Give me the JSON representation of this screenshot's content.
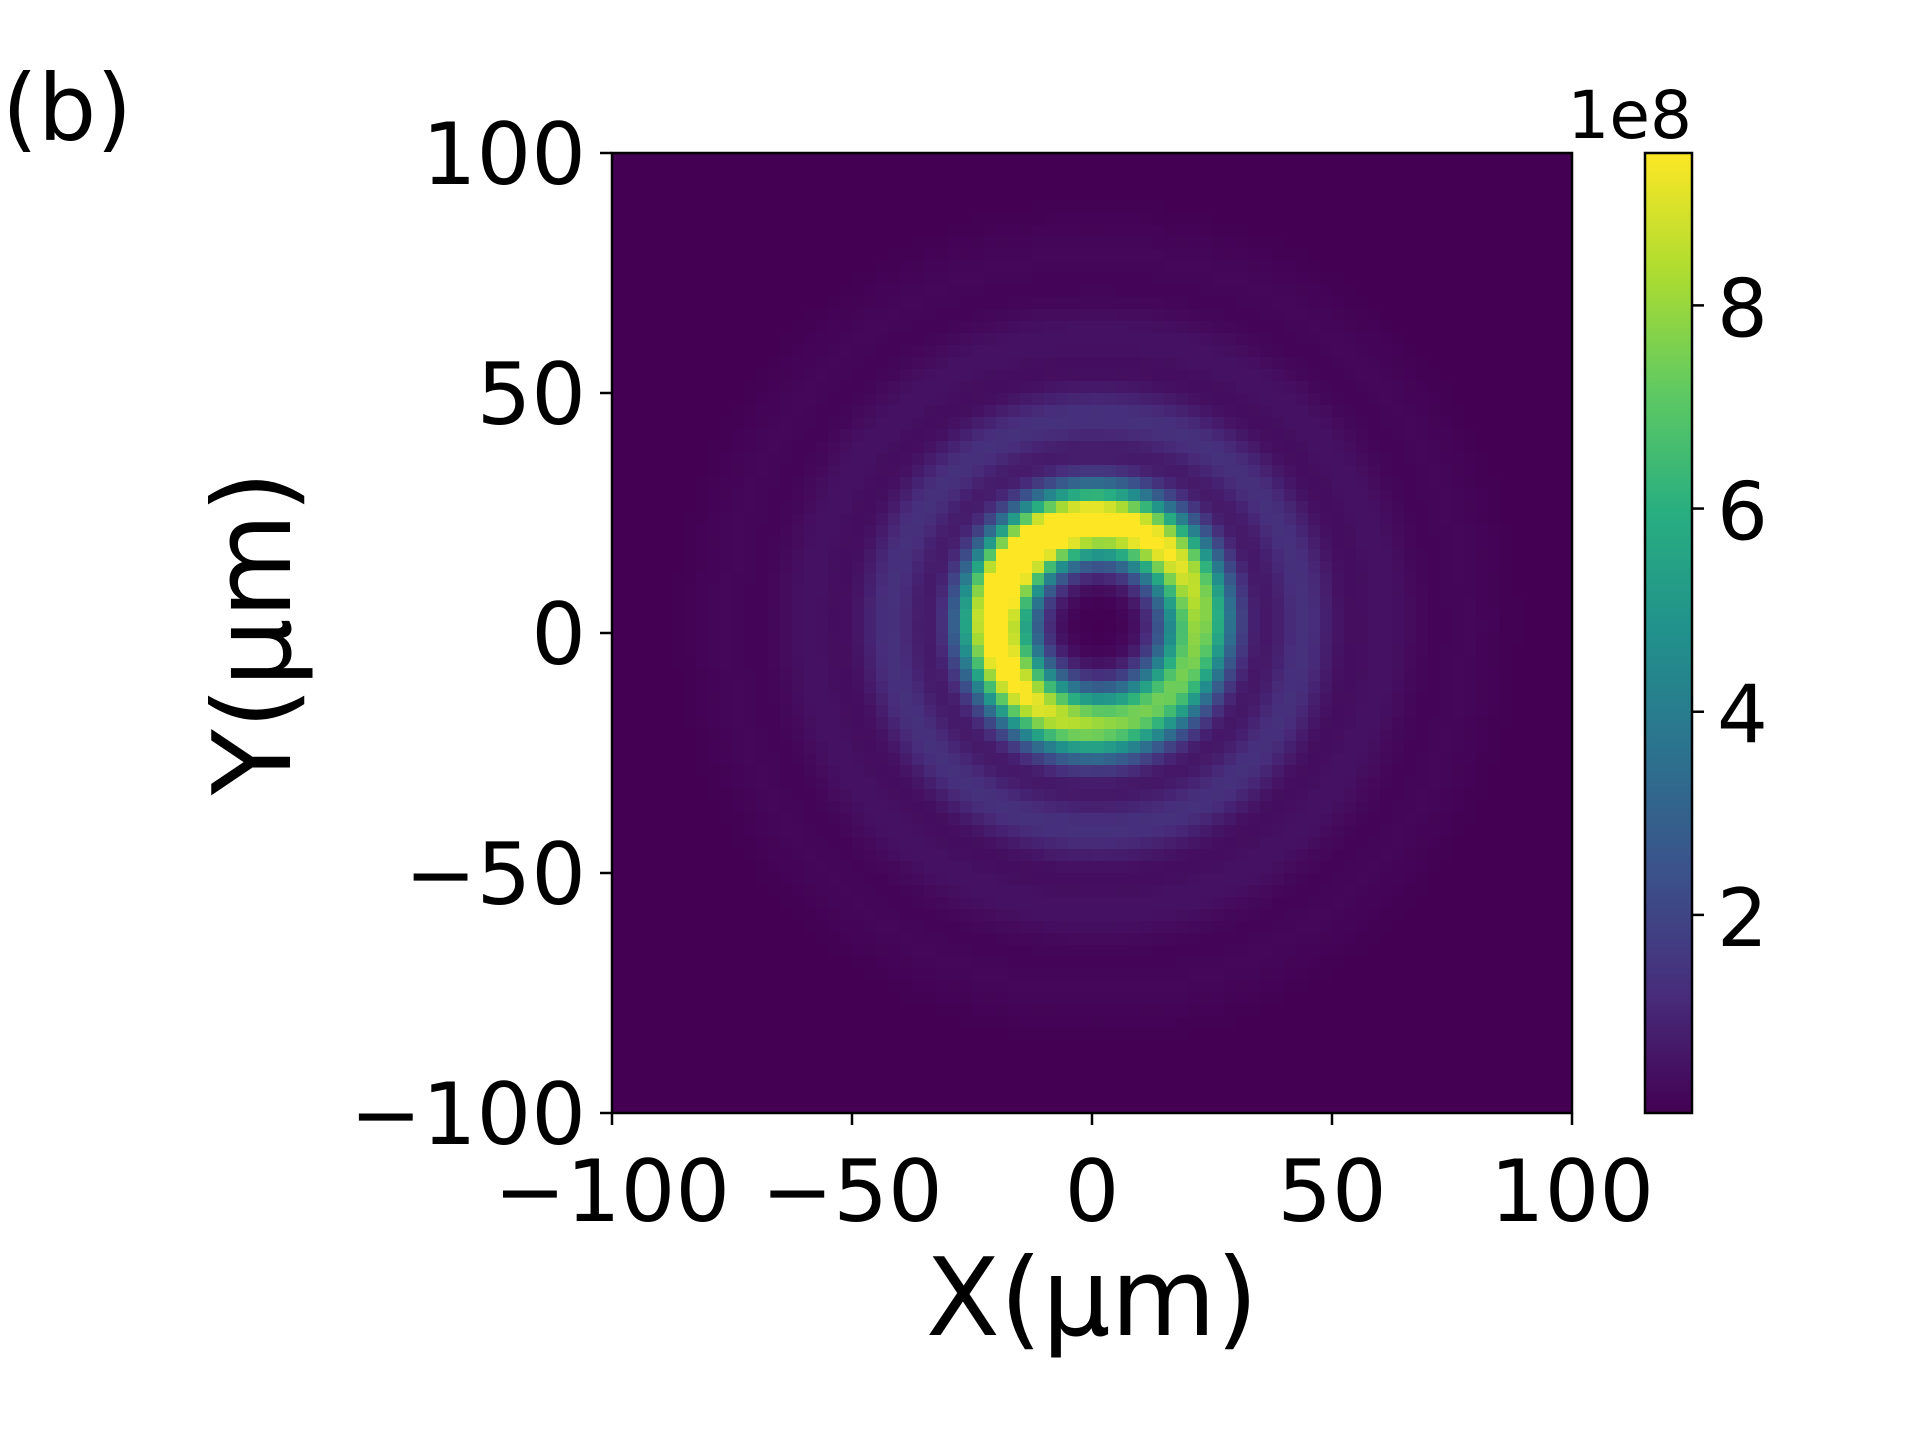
{
  "panel_label": "(b)",
  "chart_data": {
    "type": "heatmap",
    "xlabel": "X(μm)",
    "ylabel": "Y(μm)",
    "xlim": [
      -100,
      100
    ],
    "ylim": [
      -100,
      100
    ],
    "xticks": [
      -100,
      -50,
      0,
      50,
      100
    ],
    "yticks": [
      -100,
      -50,
      0,
      50,
      100
    ],
    "x_tick_labels": [
      "−100",
      "−50",
      "0",
      "50",
      "100"
    ],
    "y_tick_labels": [
      "−100",
      "−50",
      "0",
      "50",
      "100"
    ],
    "grid_resolution_um": 2.5,
    "colormap": "viridis",
    "colorbar": {
      "range": [
        0.05,
        9.5
      ],
      "ticks": [
        2,
        4,
        6,
        8
      ],
      "tick_labels": [
        "2",
        "4",
        "6",
        "8"
      ],
      "multiplier_label": "1e8"
    },
    "field": {
      "description_model": "vortex ring",
      "center": [
        1,
        2
      ],
      "ring_radius": 21,
      "ring_width": 7.5,
      "peak": 9.5,
      "background": 0.05,
      "asymmetry": {
        "amplitude": 0.22,
        "direction": [
          -0.7,
          0.7
        ]
      },
      "outer_rings": [
        {
          "radius": 43,
          "width": 7,
          "amplitude": 1.3
        },
        {
          "radius": 60,
          "width": 7,
          "amplitude": 0.45
        },
        {
          "radius": 77,
          "width": 7,
          "amplitude": 0.15
        }
      ]
    }
  }
}
